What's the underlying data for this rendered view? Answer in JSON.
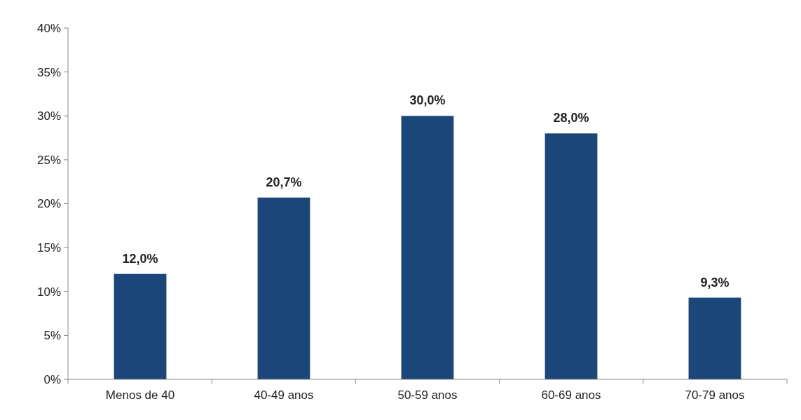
{
  "chart_data": {
    "type": "bar",
    "categories": [
      "Menos de 40",
      "40-49 anos",
      "50-59 anos",
      "60-69 anos",
      "70-79 anos"
    ],
    "values": [
      12.0,
      20.7,
      30.0,
      28.0,
      9.3
    ],
    "value_labels": [
      "12,0%",
      "20,7%",
      "30,0%",
      "28,0%",
      "9,3%"
    ],
    "color": "#1b4679",
    "ylim": [
      0,
      40
    ],
    "yticks": [
      {
        "value": 0,
        "label": "0%"
      },
      {
        "value": 5,
        "label": "5%"
      },
      {
        "value": 10,
        "label": "10%"
      },
      {
        "value": 15,
        "label": "15%"
      },
      {
        "value": 20,
        "label": "20%"
      },
      {
        "value": 25,
        "label": "25%"
      },
      {
        "value": 30,
        "label": "30%"
      },
      {
        "value": 35,
        "label": "35%"
      },
      {
        "value": 40,
        "label": "40%"
      }
    ],
    "grid": false
  }
}
